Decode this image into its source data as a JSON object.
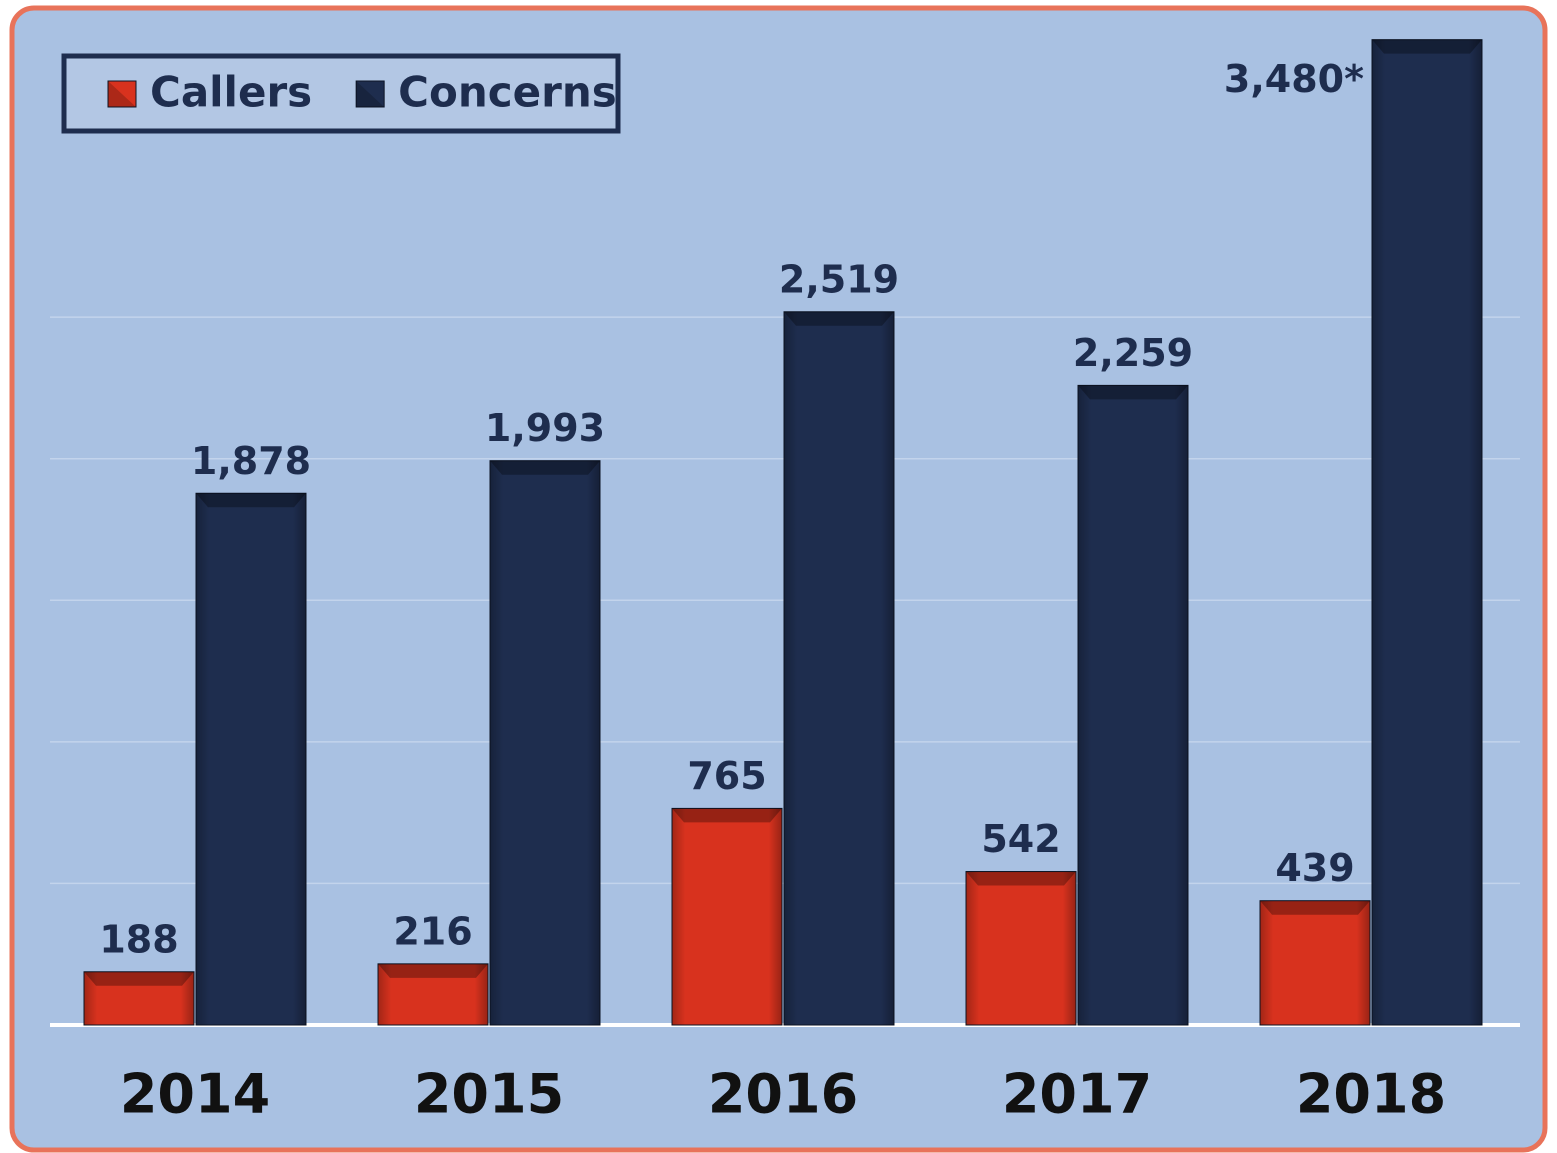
{
  "chart_data": {
    "type": "bar",
    "categories": [
      "2014",
      "2015",
      "2016",
      "2017",
      "2018"
    ],
    "series": [
      {
        "name": "Callers",
        "color": "#d8321e",
        "values": [
          188,
          216,
          765,
          542,
          439
        ],
        "value_labels": [
          "188",
          "216",
          "765",
          "542",
          "439"
        ]
      },
      {
        "name": "Concerns",
        "color": "#1e2d4e",
        "values": [
          1878,
          1993,
          2519,
          2259,
          3480
        ],
        "value_labels": [
          "1,878",
          "1,993",
          "2,519",
          "2,259",
          "3,480*"
        ]
      }
    ],
    "ylim": [
      0,
      3500
    ],
    "yticks": [
      0,
      500,
      1000,
      1500,
      2000,
      2500
    ],
    "grid": true,
    "legend": "top-left"
  }
}
